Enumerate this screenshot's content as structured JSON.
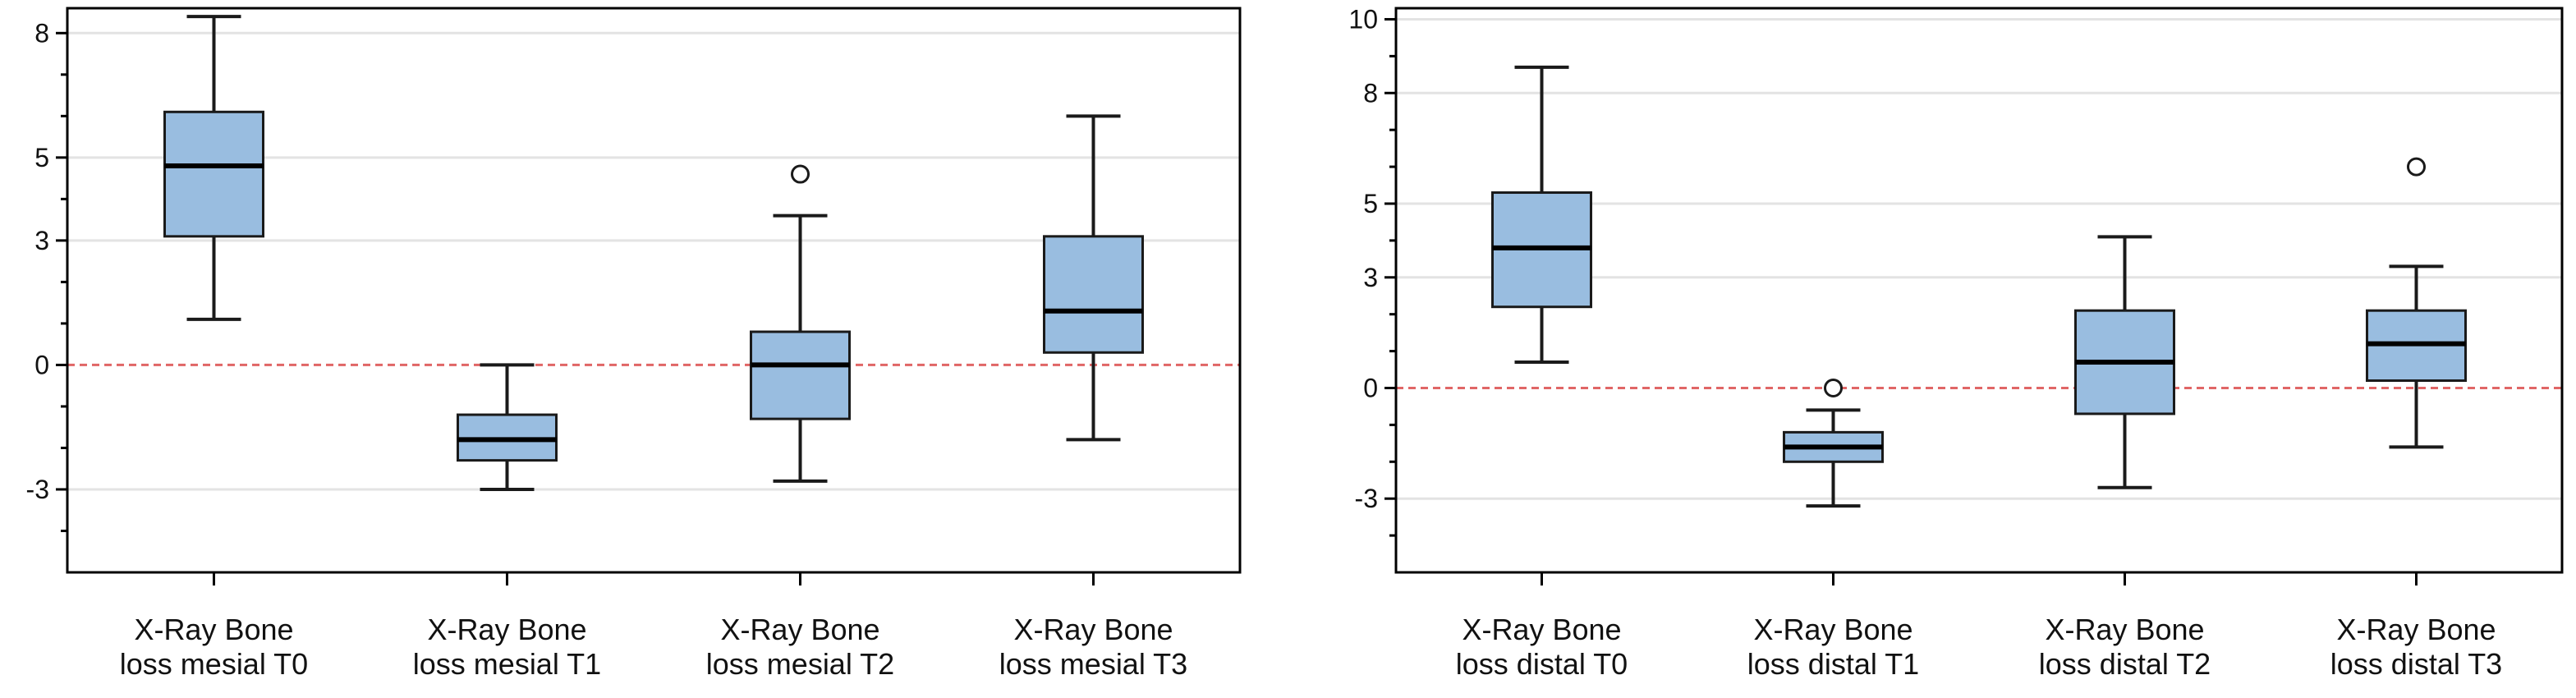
{
  "colors": {
    "box_fill": "#99bde0",
    "box_stroke": "#1a1a1a",
    "median": "#000000",
    "whisker": "#1a1a1a",
    "reference_line": "#e06666",
    "gridline": "#e3e3e3",
    "frame": "#000000"
  },
  "chart_data": [
    {
      "type": "box",
      "title": "",
      "xlabel": "",
      "ylabel": "",
      "ylim": [
        -5,
        8.6
      ],
      "yticks": [
        -3,
        0,
        3,
        5,
        8
      ],
      "minor_yticks": [
        -4,
        -2,
        -1,
        1,
        2,
        4,
        6,
        7
      ],
      "gridlines": [
        -3,
        3,
        5,
        8
      ],
      "reference_line_y": 0,
      "categories": [
        [
          "X-Ray Bone",
          "loss mesial T0"
        ],
        [
          "X-Ray Bone",
          "loss mesial T1"
        ],
        [
          "X-Ray Bone",
          "loss mesial T2"
        ],
        [
          "X-Ray Bone",
          "loss mesial T3"
        ]
      ],
      "boxes": [
        {
          "whisker_low": 1.1,
          "q1": 3.1,
          "median": 4.8,
          "q3": 6.1,
          "whisker_high": 8.4,
          "outliers": []
        },
        {
          "whisker_low": -3.0,
          "q1": -2.3,
          "median": -1.8,
          "q3": -1.2,
          "whisker_high": 0.0,
          "outliers": []
        },
        {
          "whisker_low": -2.8,
          "q1": -1.3,
          "median": 0.0,
          "q3": 0.8,
          "whisker_high": 3.6,
          "outliers": [
            4.6
          ]
        },
        {
          "whisker_low": -1.8,
          "q1": 0.3,
          "median": 1.3,
          "q3": 3.1,
          "whisker_high": 6.0,
          "outliers": []
        }
      ]
    },
    {
      "type": "box",
      "title": "",
      "xlabel": "",
      "ylabel": "",
      "ylim": [
        -5,
        10.3
      ],
      "yticks": [
        -3,
        0,
        3,
        5,
        8,
        10
      ],
      "minor_yticks": [
        -4,
        -2,
        -1,
        1,
        2,
        4,
        6,
        7,
        9
      ],
      "gridlines": [
        -3,
        3,
        5,
        8,
        10
      ],
      "reference_line_y": 0,
      "categories": [
        [
          "X-Ray Bone",
          "loss distal T0"
        ],
        [
          "X-Ray Bone",
          "loss distal T1"
        ],
        [
          "X-Ray Bone",
          "loss distal T2"
        ],
        [
          "X-Ray Bone",
          "loss distal T3"
        ]
      ],
      "boxes": [
        {
          "whisker_low": 0.7,
          "q1": 2.2,
          "median": 3.8,
          "q3": 5.3,
          "whisker_high": 8.7,
          "outliers": []
        },
        {
          "whisker_low": -3.2,
          "q1": -2.0,
          "median": -1.6,
          "q3": -1.2,
          "whisker_high": -0.6,
          "outliers": [
            0.0
          ]
        },
        {
          "whisker_low": -2.7,
          "q1": -0.7,
          "median": 0.7,
          "q3": 2.1,
          "whisker_high": 4.1,
          "outliers": []
        },
        {
          "whisker_low": -1.6,
          "q1": 0.2,
          "median": 1.2,
          "q3": 2.1,
          "whisker_high": 3.3,
          "outliers": [
            6.0
          ]
        }
      ]
    }
  ]
}
